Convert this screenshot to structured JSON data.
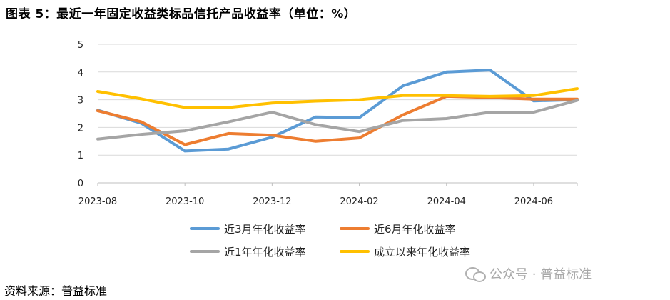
{
  "header": {
    "title": "图表 5：最近一年固定收益类标品信托产品收益率（单位：%）"
  },
  "footer": {
    "source": "资料来源：普益标准",
    "watermark": "公众号 · 普益标准"
  },
  "chart_data": {
    "type": "line",
    "x": [
      "2023-08",
      "2023-09",
      "2023-10",
      "2023-11",
      "2023-12",
      "2024-01",
      "2024-02",
      "2024-03",
      "2024-04",
      "2024-05",
      "2024-06",
      "2024-07"
    ],
    "x_tick_labels": [
      "2023-08",
      "2023-10",
      "2023-12",
      "2024-02",
      "2024-04",
      "2024-06"
    ],
    "y_tick_labels": [
      "0",
      "1",
      "2",
      "3",
      "4",
      "5"
    ],
    "ylim": [
      0,
      5
    ],
    "grid": "horizontal",
    "legend_position": "bottom",
    "series": [
      {
        "name": "近3月年化收益率",
        "color": "#5b9bd5",
        "values": [
          2.62,
          2.15,
          1.15,
          1.22,
          1.65,
          2.38,
          2.35,
          3.5,
          4.0,
          4.07,
          2.96,
          3.0
        ]
      },
      {
        "name": "近6月年化收益率",
        "color": "#ed7d31",
        "values": [
          2.6,
          2.2,
          1.38,
          1.78,
          1.72,
          1.5,
          1.62,
          2.45,
          3.12,
          3.08,
          3.02,
          3.02
        ]
      },
      {
        "name": "近1年年化收益率",
        "color": "#a5a5a5",
        "values": [
          1.58,
          1.75,
          1.88,
          2.2,
          2.55,
          2.1,
          1.85,
          2.25,
          2.32,
          2.55,
          2.55,
          2.98
        ]
      },
      {
        "name": "成立以来年化收益率",
        "color": "#ffc000",
        "values": [
          3.3,
          3.03,
          2.72,
          2.72,
          2.88,
          2.95,
          3.0,
          3.15,
          3.15,
          3.12,
          3.15,
          3.4
        ]
      }
    ]
  }
}
